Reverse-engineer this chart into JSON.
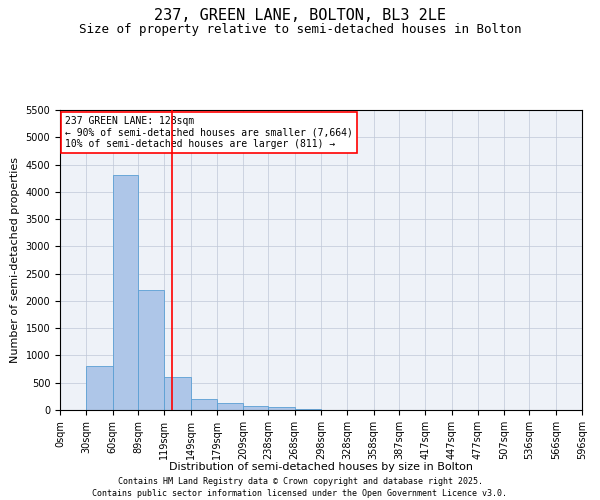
{
  "title": "237, GREEN LANE, BOLTON, BL3 2LE",
  "subtitle": "Size of property relative to semi-detached houses in Bolton",
  "xlabel": "Distribution of semi-detached houses by size in Bolton",
  "ylabel": "Number of semi-detached properties",
  "bar_color": "#aec6e8",
  "bar_edge_color": "#5a9fd4",
  "background_color": "#eef2f8",
  "bin_edges": [
    0,
    30,
    60,
    89,
    119,
    149,
    179,
    209,
    238,
    268,
    298,
    328,
    358,
    387,
    417,
    447,
    477,
    507,
    536,
    566,
    596
  ],
  "bin_labels": [
    "0sqm",
    "30sqm",
    "60sqm",
    "89sqm",
    "119sqm",
    "149sqm",
    "179sqm",
    "209sqm",
    "238sqm",
    "268sqm",
    "298sqm",
    "328sqm",
    "358sqm",
    "387sqm",
    "417sqm",
    "447sqm",
    "477sqm",
    "507sqm",
    "536sqm",
    "566sqm",
    "596sqm"
  ],
  "bar_heights": [
    0,
    800,
    4300,
    2200,
    600,
    200,
    130,
    70,
    50,
    10,
    0,
    0,
    0,
    0,
    0,
    0,
    0,
    0,
    0,
    0
  ],
  "red_line_x": 128,
  "ylim": [
    0,
    5500
  ],
  "annotation_title": "237 GREEN LANE: 128sqm",
  "annotation_line1": "← 90% of semi-detached houses are smaller (7,664)",
  "annotation_line2": "10% of semi-detached houses are larger (811) →",
  "footer_line1": "Contains HM Land Registry data © Crown copyright and database right 2025.",
  "footer_line2": "Contains public sector information licensed under the Open Government Licence v3.0.",
  "grid_color": "#c0c8d8",
  "title_fontsize": 11,
  "subtitle_fontsize": 9,
  "axis_label_fontsize": 8,
  "tick_fontsize": 7,
  "annotation_fontsize": 7,
  "footer_fontsize": 6
}
